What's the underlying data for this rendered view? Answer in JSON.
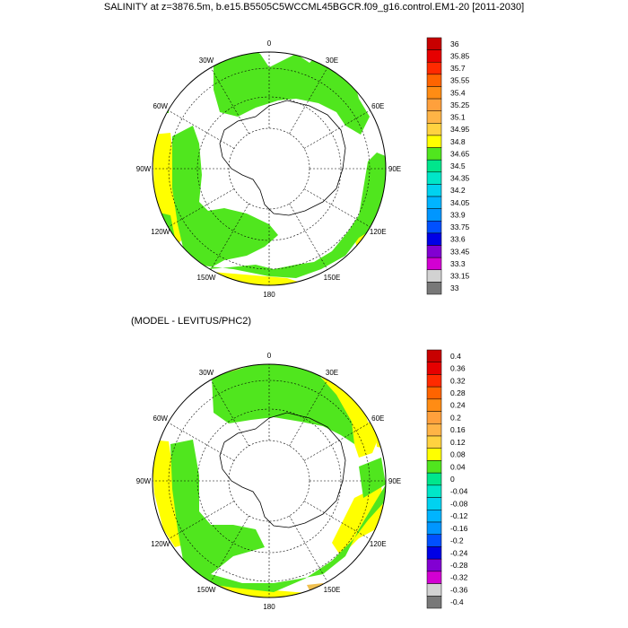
{
  "title": "SALINITY at z=3876.5m, b.e15.B5505C5WCCML45BGCR.f09_g16.control.EM1-20 [2011-2030]",
  "subtitle": "(MODEL - LEVITUS/PHC2)",
  "chart_data": [
    {
      "type": "heatmap",
      "projection": "south-polar-stereographic",
      "variable": "salinity",
      "depth_m": 3876.5,
      "longitude_labels": [
        "0",
        "30E",
        "60E",
        "90E",
        "120E",
        "150E",
        "180",
        "150W",
        "120W",
        "90W",
        "60W",
        "30W"
      ],
      "colorbar_ticks": [
        "36",
        "35.85",
        "35.7",
        "35.55",
        "35.4",
        "35.25",
        "35.1",
        "34.95",
        "34.8",
        "34.65",
        "34.5",
        "34.35",
        "34.2",
        "34.05",
        "33.9",
        "33.75",
        "33.6",
        "33.45",
        "33.3",
        "33.15",
        "33"
      ],
      "colorbar_colors": [
        "#c80000",
        "#e60000",
        "#ff2a00",
        "#ff6400",
        "#ff8c14",
        "#ffa03c",
        "#ffb446",
        "#ffd240",
        "#ffff00",
        "#50e61e",
        "#00e68c",
        "#00e6c8",
        "#00d2f0",
        "#00b4ff",
        "#0096ff",
        "#0050ff",
        "#0000e6",
        "#8200d2",
        "#d200d2",
        "#d2d2d2",
        "#787878"
      ],
      "dominant_values": {
        "green_band": "34.65-34.8",
        "yellow_band": "34.8-34.95"
      }
    },
    {
      "type": "heatmap",
      "projection": "south-polar-stereographic",
      "variable": "salinity difference",
      "longitude_labels": [
        "0",
        "30E",
        "60E",
        "90E",
        "120E",
        "150E",
        "180",
        "150W",
        "120W",
        "90W",
        "60W",
        "30W"
      ],
      "colorbar_ticks": [
        "0.4",
        "0.36",
        "0.32",
        "0.28",
        "0.24",
        "0.2",
        "0.16",
        "0.12",
        "0.08",
        "0.04",
        "0",
        "-0.04",
        "-0.08",
        "-0.12",
        "-0.16",
        "-0.2",
        "-0.24",
        "-0.28",
        "-0.32",
        "-0.36",
        "-0.4"
      ],
      "colorbar_colors": [
        "#c80000",
        "#e60000",
        "#ff2a00",
        "#ff6400",
        "#ff8c14",
        "#ffa03c",
        "#ffb446",
        "#ffd240",
        "#ffff00",
        "#50e61e",
        "#00e68c",
        "#00e6c8",
        "#00d2f0",
        "#00b4ff",
        "#0096ff",
        "#0050ff",
        "#0000e6",
        "#8200d2",
        "#d200d2",
        "#d2d2d2",
        "#787878"
      ],
      "dominant_values": {
        "green_band": "0.04-0.08",
        "yellow_band": "0.08-0.12",
        "orange_band": "0.12-0.16"
      }
    }
  ],
  "colors": {
    "green": "#50e61e",
    "yellow": "#ffff00",
    "orange": "#f0c050",
    "land_outline": "#000000",
    "grid": "#000000"
  }
}
